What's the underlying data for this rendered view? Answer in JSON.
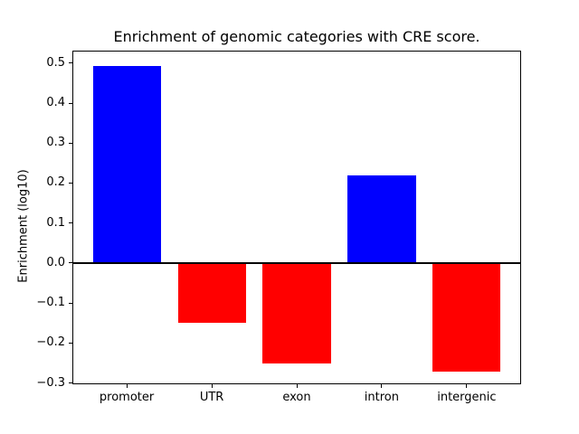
{
  "figure": {
    "background": "#ffffff"
  },
  "chart_data": {
    "type": "bar",
    "title": "Enrichment of genomic categories with CRE score.",
    "ylabel": "Enrichment (log10)",
    "xlabel": "",
    "categories": [
      "promoter",
      "UTR",
      "exon",
      "intron",
      "intergenic"
    ],
    "values": [
      0.492,
      -0.15,
      -0.251,
      0.219,
      -0.271
    ],
    "positive_color": "#0000ff",
    "negative_color": "#ff0000",
    "bar_colors": [
      "#0000ff",
      "#ff0000",
      "#ff0000",
      "#0000ff",
      "#ff0000"
    ],
    "yticks": [
      0.5,
      0.4,
      0.3,
      0.2,
      0.1,
      0.0,
      -0.1,
      -0.2,
      -0.3
    ],
    "ytick_labels": [
      "0.5",
      "0.4",
      "0.3",
      "0.2",
      "0.1",
      "0.0",
      "−0.1",
      "−0.2",
      "−0.3"
    ],
    "ylim": [
      -0.303,
      0.531
    ],
    "xlim": [
      -0.64,
      4.64
    ],
    "bar_width": 0.8,
    "zero_line": true,
    "grid": false,
    "legend": null,
    "frame_color": "#000000",
    "text_color": "#000000"
  }
}
